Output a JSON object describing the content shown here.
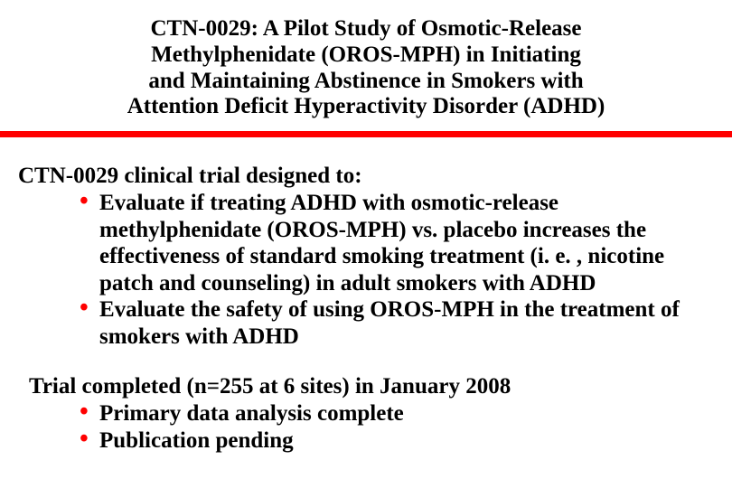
{
  "colors": {
    "divider": "#ff0000",
    "bullet": "#ff0000",
    "text": "#000000",
    "background": "#ffffff"
  },
  "typography": {
    "font_family": "Times New Roman",
    "title_fontsize": 25,
    "body_fontsize": 25,
    "weight": "bold"
  },
  "title": {
    "line1": "CTN-0029: A Pilot Study of Osmotic-Release",
    "line2": "Methylphenidate (OROS-MPH) in Initiating",
    "line3": "and Maintaining Abstinence in Smokers with",
    "line4": "Attention Deficit Hyperactivity Disorder (ADHD)"
  },
  "section1": {
    "lead": "CTN-0029 clinical trial designed to:",
    "bullets": [
      "Evaluate if treating ADHD with osmotic-release methylphenidate (OROS-MPH) vs. placebo increases the effectiveness of standard smoking treatment (i. e. , nicotine patch and counseling) in adult smokers with ADHD",
      "Evaluate the safety of using OROS-MPH in the treatment of smokers with ADHD"
    ]
  },
  "section2": {
    "lead": "Trial completed (n=255 at 6 sites) in January 2008",
    "bullets": [
      "Primary data analysis complete",
      "Publication pending"
    ]
  }
}
